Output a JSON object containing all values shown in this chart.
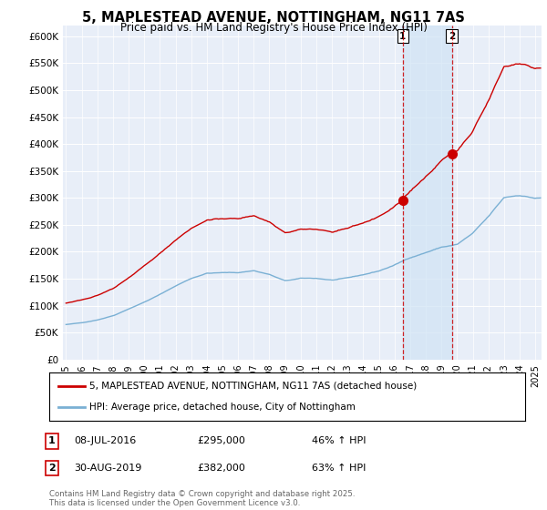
{
  "title": "5, MAPLESTEAD AVENUE, NOTTINGHAM, NG11 7AS",
  "subtitle": "Price paid vs. HM Land Registry's House Price Index (HPI)",
  "background_color": "#ffffff",
  "plot_bg_color": "#e8eef8",
  "grid_color": "#ffffff",
  "ylim": [
    0,
    620000
  ],
  "yticks": [
    0,
    50000,
    100000,
    150000,
    200000,
    250000,
    300000,
    350000,
    400000,
    450000,
    500000,
    550000,
    600000
  ],
  "ytick_labels": [
    "£0",
    "£50K",
    "£100K",
    "£150K",
    "£200K",
    "£250K",
    "£300K",
    "£350K",
    "£400K",
    "£450K",
    "£500K",
    "£550K",
    "£600K"
  ],
  "purchase1_date": "08-JUL-2016",
  "purchase1_price": 295000,
  "purchase1_year": 2016.53,
  "purchase1_pct": "46% ↑ HPI",
  "purchase2_date": "30-AUG-2019",
  "purchase2_price": 382000,
  "purchase2_year": 2019.66,
  "purchase2_pct": "63% ↑ HPI",
  "legend_line1": "5, MAPLESTEAD AVENUE, NOTTINGHAM, NG11 7AS (detached house)",
  "legend_line2": "HPI: Average price, detached house, City of Nottingham",
  "footnote": "Contains HM Land Registry data © Crown copyright and database right 2025.\nThis data is licensed under the Open Government Licence v3.0.",
  "line_color_paid": "#cc0000",
  "line_color_hpi": "#7ab0d4",
  "vline_color": "#cc0000",
  "shade_color": "#d0e4f5"
}
